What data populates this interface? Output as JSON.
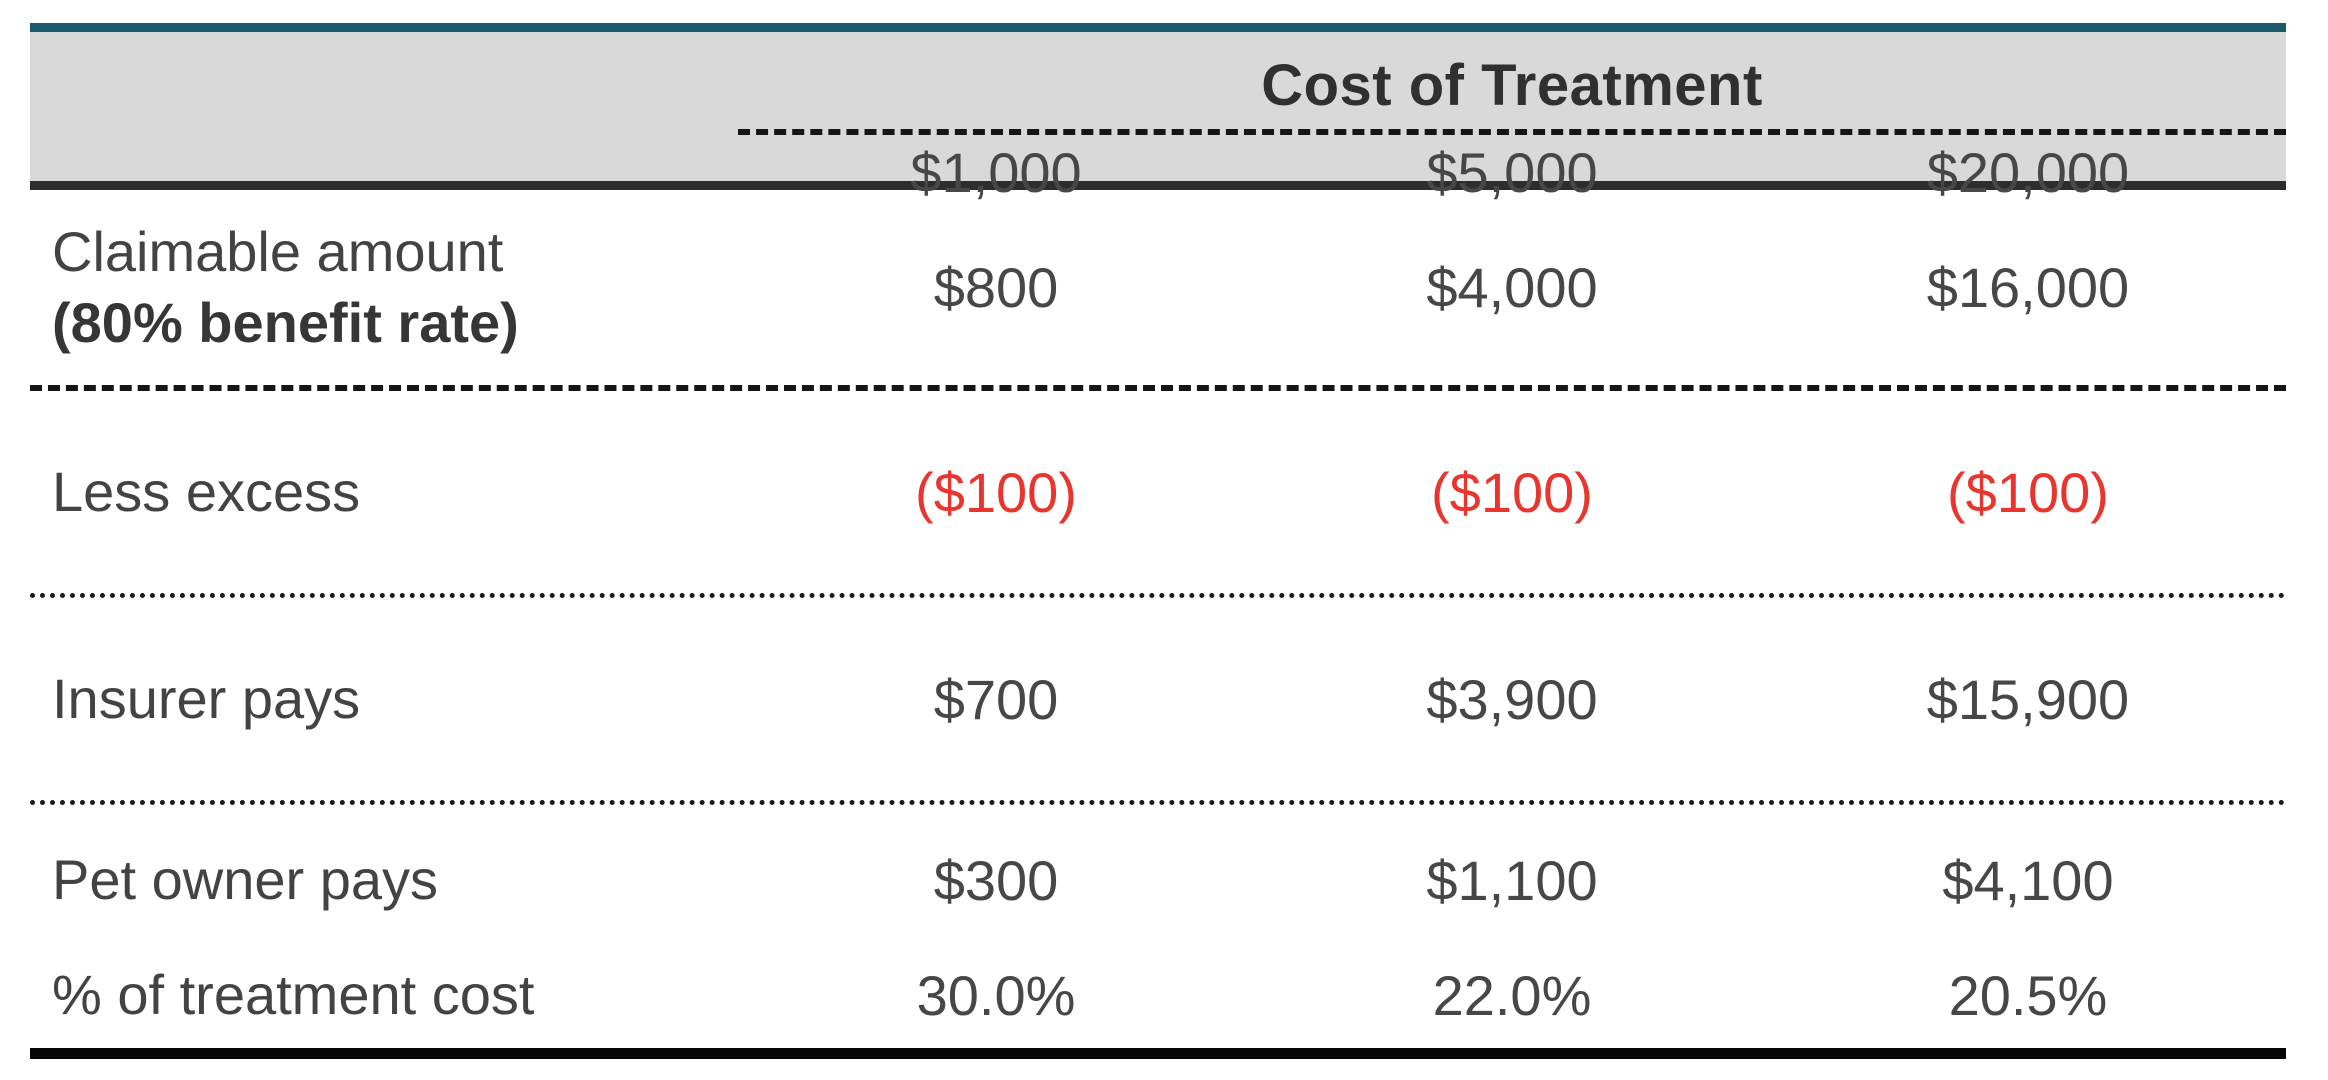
{
  "colors": {
    "accent_teal": "#1b5a6d",
    "header_background": "#d9d9d9",
    "negative_red": "#e8362e",
    "rule_dark": "#2d2d2d"
  },
  "table": {
    "group_header": "Cost of Treatment",
    "columns": [
      "$1,000",
      "$5,000",
      "$20,000"
    ],
    "rows": [
      {
        "label_line1": "Claimable amount",
        "label_line2": "(80% benefit rate)",
        "values": [
          "$800",
          "$4,000",
          "$16,000"
        ]
      },
      {
        "label_line1": "Less excess",
        "values": [
          "($100)",
          "($100)",
          "($100)"
        ]
      },
      {
        "label_line1": "Insurer pays",
        "values": [
          "$700",
          "$3,900",
          "$15,900"
        ]
      },
      {
        "label_line1": "Pet owner pays",
        "values": [
          "$300",
          "$1,100",
          "$4,100"
        ]
      },
      {
        "label_line1": "% of treatment cost",
        "values": [
          "30.0%",
          "22.0%",
          "20.5%"
        ]
      }
    ]
  },
  "chart_data": {
    "type": "table",
    "title": "Cost of Treatment",
    "column_headers": [
      "$1,000",
      "$5,000",
      "$20,000"
    ],
    "row_labels": [
      "Claimable amount (80% benefit rate)",
      "Less excess",
      "Insurer pays",
      "Pet owner pays",
      "% of treatment cost"
    ],
    "cells": [
      [
        "$800",
        "$4,000",
        "$16,000"
      ],
      [
        "($100)",
        "($100)",
        "($100)"
      ],
      [
        "$700",
        "$3,900",
        "$15,900"
      ],
      [
        "$300",
        "$1,100",
        "$4,100"
      ],
      [
        "30.0%",
        "22.0%",
        "20.5%"
      ]
    ]
  }
}
